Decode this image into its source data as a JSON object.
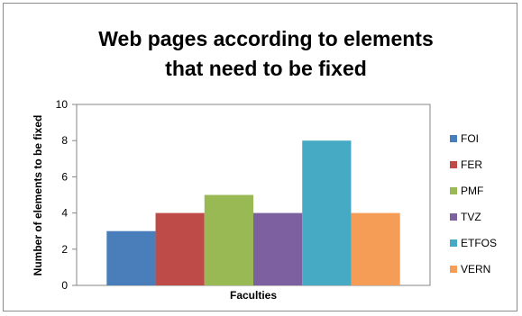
{
  "chart_data": {
    "type": "bar",
    "title_lines": [
      "Web pages according to elements",
      "that need to be fixed"
    ],
    "xlabel": "Faculties",
    "ylabel": "Number of elements to be fixed",
    "ylim": [
      0,
      10
    ],
    "yticks": [
      0,
      2,
      4,
      6,
      8,
      10
    ],
    "categories": [
      ""
    ],
    "grid": false,
    "legend_position": "right",
    "series": [
      {
        "name": "FOI",
        "values": [
          3
        ],
        "color": "#4a7ebb"
      },
      {
        "name": "FER",
        "values": [
          4
        ],
        "color": "#be4b48"
      },
      {
        "name": "PMF",
        "values": [
          5
        ],
        "color": "#98b954"
      },
      {
        "name": "TVZ",
        "values": [
          4
        ],
        "color": "#7d60a0"
      },
      {
        "name": "ETFOS",
        "values": [
          8
        ],
        "color": "#46aac5"
      },
      {
        "name": "VERN",
        "values": [
          4
        ],
        "color": "#f59d56"
      }
    ]
  }
}
